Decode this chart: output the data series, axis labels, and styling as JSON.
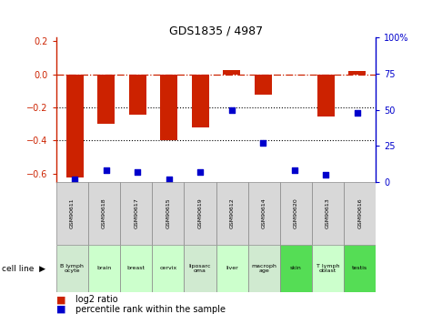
{
  "title": "GDS1835 / 4987",
  "samples": [
    "GSM90611",
    "GSM90618",
    "GSM90617",
    "GSM90615",
    "GSM90619",
    "GSM90612",
    "GSM90614",
    "GSM90620",
    "GSM90613",
    "GSM90616"
  ],
  "cell_lines": [
    "B lymph\nocyte",
    "brain",
    "breast",
    "cervix",
    "liposarc\noma",
    "liver",
    "macroph\nage",
    "skin",
    "T lymph\noblast",
    "testis"
  ],
  "cell_line_colors": [
    "#d0ead0",
    "#ccffcc",
    "#ccffcc",
    "#ccffcc",
    "#d0ead0",
    "#ccffcc",
    "#d0ead0",
    "#55dd55",
    "#ccffcc",
    "#55dd55"
  ],
  "gsm_color": "#d8d8d8",
  "log2_ratio": [
    -0.62,
    -0.3,
    -0.245,
    -0.395,
    -0.32,
    0.025,
    -0.125,
    -0.005,
    -0.255,
    0.02
  ],
  "pct_rank_right": [
    2,
    8,
    7,
    2,
    7,
    50,
    27,
    8,
    5,
    48
  ],
  "ylim_left": [
    -0.65,
    0.22
  ],
  "ylim_right": [
    0,
    100
  ],
  "yticks_left": [
    -0.6,
    -0.4,
    -0.2,
    0.0,
    0.2
  ],
  "yticks_right": [
    0,
    25,
    50,
    75,
    100
  ],
  "bar_color": "#cc2200",
  "dot_color": "#0000cc",
  "dotted_lines": [
    -0.2,
    -0.4
  ],
  "bar_width": 0.55
}
